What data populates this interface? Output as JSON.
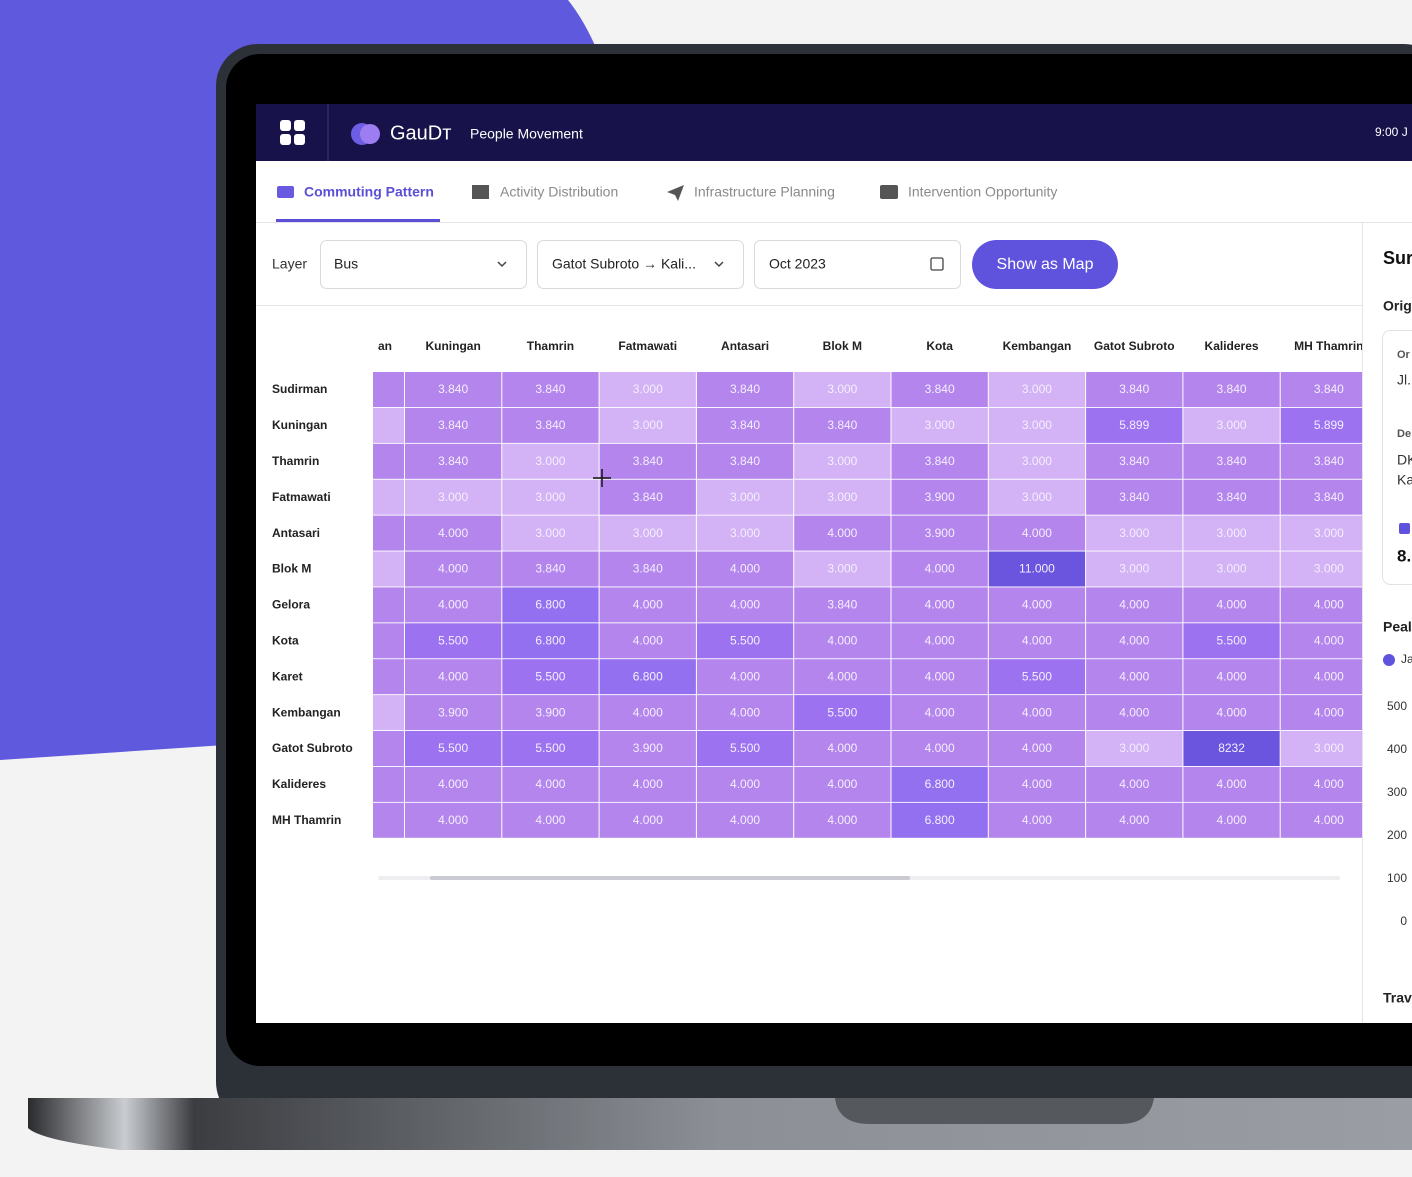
{
  "header": {
    "brand": "GauDт",
    "product": "People Movement",
    "time": "9:00 J"
  },
  "tabs": [
    "Commuting Pattern",
    "Activity Distribution",
    "Infrastructure Planning",
    "Intervention Opportunity"
  ],
  "filters": {
    "layer_label": "Layer",
    "layer": "Bus",
    "route": "Gatot Subroto → Kali...",
    "date": "Oct 2023",
    "button": "Show as Map"
  },
  "table": {
    "columns": [
      "an",
      "Kuningan",
      "Thamrin",
      "Fatmawati",
      "Antasari",
      "Blok M",
      "Kota",
      "Kembangan",
      "Gatot Subroto",
      "Kalideres",
      "MH Thamrin"
    ],
    "rows": [
      {
        "label": "Sudirman",
        "cells": [
          "3.840",
          "3.840",
          "3.000",
          "3.840",
          "3.000",
          "3.840",
          "3.000",
          "3.840",
          "3.840",
          "3.840"
        ]
      },
      {
        "label": "Kuningan",
        "cells": [
          "3.840",
          "3.840",
          "3.000",
          "3.840",
          "3.840",
          "3.000",
          "3.000",
          "5.899",
          "3.000",
          "5.899"
        ]
      },
      {
        "label": "Thamrin",
        "cells": [
          "3.840",
          "3.000",
          "3.840",
          "3.840",
          "3.000",
          "3.840",
          "3.000",
          "3.840",
          "3.840",
          "3.840"
        ]
      },
      {
        "label": "Fatmawati",
        "cells": [
          "3.000",
          "3.000",
          "3.840",
          "3.000",
          "3.000",
          "3.900",
          "3.000",
          "3.840",
          "3.840",
          "3.840"
        ]
      },
      {
        "label": "Antasari",
        "cells": [
          "4.000",
          "3.000",
          "3.000",
          "3.000",
          "4.000",
          "3.900",
          "4.000",
          "3.000",
          "3.000",
          "3.000"
        ]
      },
      {
        "label": "Blok M",
        "cells": [
          "4.000",
          "3.840",
          "3.840",
          "4.000",
          "3.000",
          "4.000",
          "11.000",
          "3.000",
          "3.000",
          "3.000"
        ]
      },
      {
        "label": "Gelora",
        "cells": [
          "4.000",
          "6.800",
          "4.000",
          "4.000",
          "3.840",
          "4.000",
          "4.000",
          "4.000",
          "4.000",
          "4.000"
        ]
      },
      {
        "label": "Kota",
        "cells": [
          "5.500",
          "6.800",
          "4.000",
          "5.500",
          "4.000",
          "4.000",
          "4.000",
          "4.000",
          "5.500",
          "4.000"
        ]
      },
      {
        "label": "Karet",
        "cells": [
          "4.000",
          "5.500",
          "6.800",
          "4.000",
          "4.000",
          "4.000",
          "5.500",
          "4.000",
          "4.000",
          "4.000"
        ]
      },
      {
        "label": "Kembangan",
        "cells": [
          "3.900",
          "3.900",
          "4.000",
          "4.000",
          "5.500",
          "4.000",
          "4.000",
          "4.000",
          "4.000",
          "4.000"
        ]
      },
      {
        "label": "Gatot Subroto",
        "cells": [
          "5.500",
          "5.500",
          "3.900",
          "5.500",
          "4.000",
          "4.000",
          "4.000",
          "3.000",
          "8232",
          "3.000"
        ]
      },
      {
        "label": "Kalideres",
        "cells": [
          "4.000",
          "4.000",
          "4.000",
          "4.000",
          "4.000",
          "6.800",
          "4.000",
          "4.000",
          "4.000",
          "4.000"
        ]
      },
      {
        "label": "MH Thamrin",
        "cells": [
          "4.000",
          "4.000",
          "4.000",
          "4.000",
          "4.000",
          "6.800",
          "4.000",
          "4.000",
          "4.000",
          "4.000"
        ]
      }
    ]
  },
  "side_panel": {
    "title": "Sur",
    "origin_label": "Orig",
    "card": {
      "origin": "Or",
      "origin_value": "Jl.",
      "destination": "De",
      "destination_line_1": "DK",
      "destination_line_2": "Ka",
      "total": "8."
    },
    "peak_label": "Peal",
    "legend": "Ja",
    "yticks": [
      "500",
      "400",
      "300",
      "200",
      "100",
      "0"
    ],
    "footer": "Trav"
  }
}
